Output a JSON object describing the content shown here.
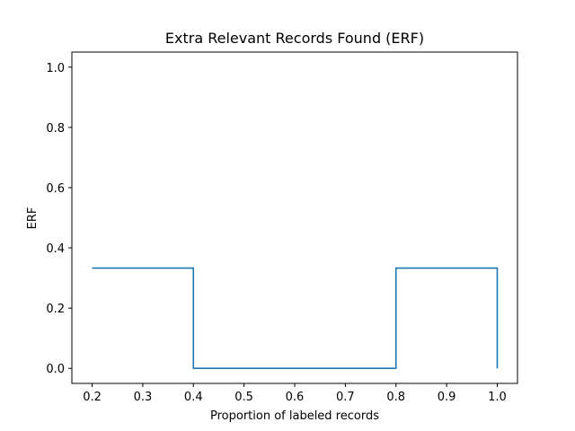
{
  "chart_data": {
    "type": "line",
    "title": "Extra Relevant Records Found (ERF)",
    "xlabel": "Proportion of labeled records",
    "ylabel": "ERF",
    "xlim": [
      0.16,
      1.04
    ],
    "ylim": [
      -0.05,
      1.05
    ],
    "x_ticks": [
      0.2,
      0.3,
      0.4,
      0.5,
      0.6,
      0.7,
      0.8,
      0.9,
      1.0
    ],
    "y_ticks": [
      0.0,
      0.2,
      0.4,
      0.6,
      0.8,
      1.0
    ],
    "x_tick_labels": [
      "0.2",
      "0.3",
      "0.4",
      "0.5",
      "0.6",
      "0.7",
      "0.8",
      "0.9",
      "1.0"
    ],
    "y_tick_labels": [
      "0.0",
      "0.2",
      "0.4",
      "0.6",
      "0.8",
      "1.0"
    ],
    "grid": false,
    "step": "post",
    "series": [
      {
        "color": "#1f77b4",
        "x": [
          0.2,
          0.4,
          0.8,
          1.0,
          1.0
        ],
        "y": [
          0.333,
          0.0,
          0.333,
          0.333,
          0.0
        ]
      }
    ]
  }
}
